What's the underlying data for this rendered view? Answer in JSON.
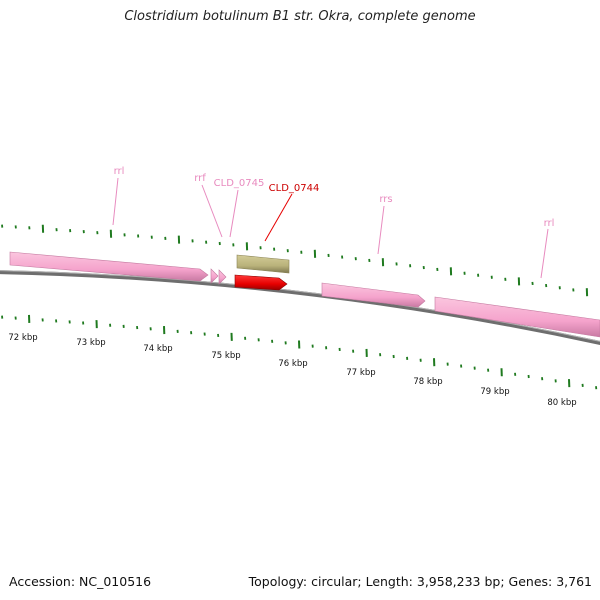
{
  "title": "Clostridium botulinum B1 str. Okra, complete genome",
  "footer": {
    "accession": "Accession: NC_010516",
    "topology": "Topology: circular; Length: 3,958,233 bp; Genes: 3,761"
  },
  "colors": {
    "rna_feature": "#f5a3cc",
    "rna_label": "#e88bbf",
    "highlight_gene": "#e60000",
    "neighbor_gene": "#b9b27a",
    "tick": "#1f7a1f",
    "backbone": "#7a7a7a"
  },
  "ruler": {
    "unit": "kbp",
    "labels": [
      "72 kbp",
      "73 kbp",
      "74 kbp",
      "75 kbp",
      "76 kbp",
      "77 kbp",
      "78 kbp",
      "79 kbp",
      "80 kbp"
    ]
  },
  "features": [
    {
      "label": "rrl",
      "type": "rRNA",
      "strand": "forward"
    },
    {
      "label": "rrf",
      "type": "rRNA",
      "strand": "forward"
    },
    {
      "label": "CLD_0745",
      "type": "gene",
      "strand": "forward"
    },
    {
      "label": "CLD_0744",
      "type": "gene",
      "strand": "forward",
      "highlighted": true
    },
    {
      "label": "rrs",
      "type": "rRNA",
      "strand": "forward"
    },
    {
      "label": "rrl",
      "type": "rRNA",
      "strand": "forward"
    }
  ]
}
